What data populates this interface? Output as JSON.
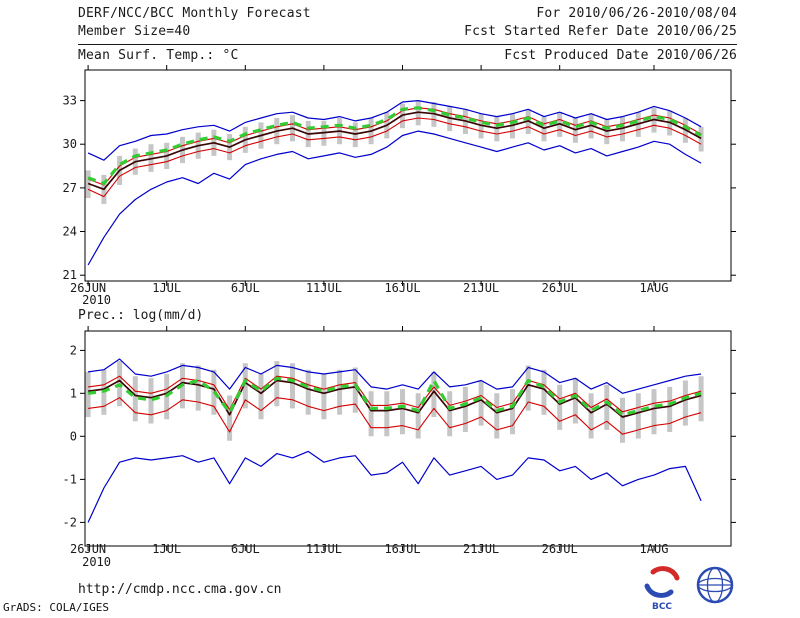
{
  "header": {
    "title": "DERF/NCC/BCC Monthly Forecast",
    "member_size": "Member Size=40",
    "for_range": "For 2010/06/26-2010/08/04",
    "fcst_started": "Fcst Started Refer Date 2010/06/25",
    "fcst_produced": "Fcst Produced Date 2010/06/26"
  },
  "footer": {
    "url": "http://cmdp.ncc.cma.gov.cn",
    "credit": "GrADS: COLA/IGES",
    "logos": {
      "bcc_label": "BCC"
    }
  },
  "colors": {
    "envelope_blue": "#0000cc",
    "quartile_red": "#d40000",
    "mean_dark": "#3a0505",
    "median_green": "#33cc33",
    "spread_gray": "#c6c6c6",
    "axis_black": "#000000",
    "text_dark": "#1a1a1a"
  },
  "chart_data": [
    {
      "type": "line",
      "title": "Mean Surf. Temp.: °C",
      "x_year": "2010",
      "xtick_labels": [
        "26JUN",
        "1JUL",
        "6JUL",
        "11JUL",
        "16JUL",
        "21JUL",
        "26JUL",
        "1AUG"
      ],
      "xtick_days": [
        0,
        5,
        10,
        15,
        20,
        25,
        30,
        36
      ],
      "xlim": [
        -0.2,
        40.9
      ],
      "ylim": [
        20.6,
        35.1
      ],
      "yticks": [
        21,
        24,
        27,
        30,
        33
      ],
      "ylabel": "Mean Surf. Temp. (°C)",
      "legend_position": "none",
      "grid": false,
      "bars": {
        "name": "ensemble-spread",
        "color": "#c6c6c6",
        "top": [
          28.2,
          27.9,
          29.2,
          29.7,
          30.0,
          30.1,
          30.5,
          30.8,
          31.0,
          30.7,
          31.2,
          31.5,
          31.8,
          32.0,
          31.6,
          31.6,
          31.8,
          31.5,
          31.8,
          32.2,
          32.8,
          33.0,
          32.9,
          32.6,
          32.4,
          32.1,
          31.9,
          32.1,
          32.4,
          31.9,
          32.2,
          31.8,
          32.1,
          31.7,
          31.9,
          32.2,
          32.5,
          32.3,
          31.8,
          31.2
        ],
        "bottom": [
          26.3,
          25.9,
          27.2,
          27.9,
          28.1,
          28.3,
          28.7,
          29.0,
          29.2,
          28.9,
          29.4,
          29.7,
          30.0,
          30.2,
          29.8,
          29.9,
          30.0,
          29.8,
          30.0,
          30.4,
          31.1,
          31.3,
          31.2,
          30.9,
          30.7,
          30.4,
          30.2,
          30.4,
          30.7,
          30.2,
          30.5,
          30.1,
          30.4,
          30.0,
          30.2,
          30.5,
          30.8,
          30.6,
          30.1,
          29.5
        ]
      },
      "series": [
        {
          "name": "ensemble-max",
          "color": "#0000cc",
          "style": "solid",
          "width": 1.2,
          "values": [
            29.4,
            28.9,
            29.9,
            30.2,
            30.6,
            30.7,
            31.0,
            31.2,
            31.3,
            30.9,
            31.5,
            31.8,
            32.1,
            32.2,
            31.8,
            31.7,
            31.9,
            31.6,
            31.8,
            32.2,
            32.9,
            33.0,
            32.8,
            32.6,
            32.4,
            32.1,
            31.9,
            32.1,
            32.4,
            31.9,
            32.2,
            31.8,
            32.1,
            31.7,
            31.9,
            32.2,
            32.6,
            32.3,
            31.8,
            31.2
          ]
        },
        {
          "name": "ensemble-min",
          "color": "#0000cc",
          "style": "solid",
          "width": 1.2,
          "values": [
            21.7,
            23.6,
            25.2,
            26.2,
            26.9,
            27.4,
            27.7,
            27.3,
            28.0,
            27.6,
            28.6,
            29.0,
            29.3,
            29.5,
            29.0,
            29.2,
            29.4,
            29.1,
            29.3,
            29.8,
            30.6,
            30.9,
            30.7,
            30.4,
            30.1,
            29.8,
            29.5,
            29.8,
            30.1,
            29.6,
            29.9,
            29.4,
            29.7,
            29.2,
            29.5,
            29.8,
            30.2,
            30.0,
            29.3,
            28.7
          ]
        },
        {
          "name": "upper-quartile",
          "color": "#d40000",
          "style": "solid",
          "width": 1.1,
          "values": [
            27.6,
            27.2,
            28.5,
            29.1,
            29.3,
            29.5,
            29.9,
            30.2,
            30.4,
            30.1,
            30.6,
            30.9,
            31.2,
            31.4,
            31.0,
            31.1,
            31.2,
            31.0,
            31.2,
            31.6,
            32.3,
            32.5,
            32.4,
            32.1,
            31.9,
            31.6,
            31.4,
            31.6,
            31.9,
            31.4,
            31.7,
            31.3,
            31.6,
            31.2,
            31.4,
            31.7,
            32.0,
            31.8,
            31.3,
            30.7
          ]
        },
        {
          "name": "lower-quartile",
          "color": "#d40000",
          "style": "solid",
          "width": 1.1,
          "values": [
            26.9,
            26.4,
            27.8,
            28.4,
            28.6,
            28.8,
            29.2,
            29.5,
            29.7,
            29.4,
            29.9,
            30.2,
            30.5,
            30.7,
            30.3,
            30.4,
            30.5,
            30.3,
            30.5,
            30.9,
            31.6,
            31.8,
            31.7,
            31.4,
            31.2,
            30.9,
            30.7,
            30.9,
            31.2,
            30.7,
            31.0,
            30.6,
            30.9,
            30.5,
            30.7,
            31.0,
            31.3,
            31.1,
            30.6,
            30.0
          ]
        },
        {
          "name": "ensemble-mean",
          "color": "#3a0505",
          "style": "solid",
          "width": 1.7,
          "values": [
            27.3,
            26.9,
            28.2,
            28.8,
            29.0,
            29.2,
            29.6,
            29.9,
            30.1,
            29.8,
            30.3,
            30.6,
            30.9,
            31.1,
            30.7,
            30.8,
            30.9,
            30.7,
            30.9,
            31.3,
            32.0,
            32.2,
            32.1,
            31.8,
            31.6,
            31.3,
            31.1,
            31.3,
            31.6,
            31.1,
            31.4,
            31.0,
            31.3,
            30.9,
            31.1,
            31.4,
            31.7,
            31.5,
            31.0,
            30.4
          ]
        },
        {
          "name": "ensemble-median",
          "color": "#33cc33",
          "style": "dashed",
          "width": 3.2,
          "values": [
            27.7,
            27.3,
            28.6,
            29.2,
            29.4,
            29.6,
            30.0,
            30.3,
            30.5,
            30.2,
            30.7,
            31.0,
            31.3,
            31.5,
            31.1,
            31.2,
            31.3,
            31.1,
            31.3,
            31.7,
            32.4,
            32.5,
            32.3,
            32.0,
            31.8,
            31.5,
            31.3,
            31.5,
            31.8,
            31.3,
            31.6,
            31.2,
            31.5,
            31.1,
            31.3,
            31.6,
            31.9,
            31.7,
            31.2,
            30.6
          ]
        }
      ]
    },
    {
      "type": "line",
      "title": "Prec.: log(mm/d)",
      "x_year": "2010",
      "xtick_labels": [
        "26JUN",
        "1JUL",
        "6JUL",
        "11JUL",
        "16JUL",
        "21JUL",
        "26JUL",
        "1AUG"
      ],
      "xtick_days": [
        0,
        5,
        10,
        15,
        20,
        25,
        30,
        36
      ],
      "xlim": [
        -0.2,
        40.9
      ],
      "ylim": [
        -2.55,
        2.45
      ],
      "yticks": [
        -2,
        -1,
        0,
        1,
        2
      ],
      "ylabel": "Prec. log(mm/d)",
      "legend_position": "none",
      "grid": false,
      "bars": {
        "name": "ensemble-spread",
        "color": "#c6c6c6",
        "top": [
          1.5,
          1.55,
          1.75,
          1.4,
          1.35,
          1.45,
          1.7,
          1.65,
          1.55,
          0.95,
          1.7,
          1.45,
          1.75,
          1.7,
          1.55,
          1.45,
          1.55,
          1.6,
          1.05,
          1.05,
          1.1,
          1.0,
          1.5,
          1.05,
          1.15,
          1.3,
          1.0,
          1.1,
          1.65,
          1.55,
          1.2,
          1.35,
          1.0,
          1.2,
          0.9,
          1.0,
          1.1,
          1.15,
          1.3,
          1.4
        ],
        "bottom": [
          0.45,
          0.5,
          0.7,
          0.35,
          0.3,
          0.4,
          0.65,
          0.6,
          0.5,
          -0.1,
          0.65,
          0.4,
          0.7,
          0.65,
          0.5,
          0.4,
          0.5,
          0.55,
          0.0,
          0.0,
          0.05,
          -0.05,
          0.45,
          0.0,
          0.1,
          0.25,
          -0.05,
          0.05,
          0.6,
          0.5,
          0.15,
          0.3,
          -0.05,
          0.15,
          -0.15,
          -0.05,
          0.05,
          0.1,
          0.25,
          0.35
        ]
      },
      "series": [
        {
          "name": "ensemble-max",
          "color": "#0000cc",
          "style": "solid",
          "width": 1.2,
          "values": [
            1.5,
            1.55,
            1.8,
            1.45,
            1.4,
            1.5,
            1.65,
            1.6,
            1.5,
            1.1,
            1.6,
            1.45,
            1.65,
            1.6,
            1.5,
            1.45,
            1.5,
            1.55,
            1.15,
            1.1,
            1.2,
            1.1,
            1.5,
            1.15,
            1.2,
            1.3,
            1.1,
            1.15,
            1.6,
            1.5,
            1.25,
            1.35,
            1.1,
            1.25,
            1.0,
            1.1,
            1.2,
            1.3,
            1.4,
            1.45
          ]
        },
        {
          "name": "ensemble-min",
          "color": "#0000cc",
          "style": "solid",
          "width": 1.2,
          "values": [
            -2.0,
            -1.2,
            -0.6,
            -0.5,
            -0.55,
            -0.5,
            -0.45,
            -0.6,
            -0.5,
            -1.1,
            -0.5,
            -0.7,
            -0.4,
            -0.5,
            -0.35,
            -0.6,
            -0.5,
            -0.45,
            -0.9,
            -0.85,
            -0.6,
            -1.1,
            -0.5,
            -0.9,
            -0.8,
            -0.7,
            -1.0,
            -0.9,
            -0.5,
            -0.55,
            -0.8,
            -0.7,
            -1.0,
            -0.85,
            -1.15,
            -1.0,
            -0.9,
            -0.75,
            -0.7,
            -1.5
          ]
        },
        {
          "name": "upper-quartile",
          "color": "#d40000",
          "style": "solid",
          "width": 1.1,
          "values": [
            1.15,
            1.2,
            1.4,
            1.05,
            1.0,
            1.1,
            1.35,
            1.3,
            1.2,
            0.62,
            1.35,
            1.1,
            1.4,
            1.35,
            1.2,
            1.1,
            1.2,
            1.25,
            0.72,
            0.72,
            0.77,
            0.67,
            1.15,
            0.72,
            0.82,
            0.95,
            0.67,
            0.77,
            1.3,
            1.2,
            0.87,
            1.0,
            0.67,
            0.87,
            0.57,
            0.67,
            0.77,
            0.82,
            0.95,
            1.05
          ]
        },
        {
          "name": "lower-quartile",
          "color": "#d40000",
          "style": "solid",
          "width": 1.1,
          "values": [
            0.65,
            0.7,
            0.9,
            0.55,
            0.5,
            0.6,
            0.85,
            0.8,
            0.7,
            0.1,
            0.85,
            0.6,
            0.9,
            0.85,
            0.7,
            0.6,
            0.7,
            0.75,
            0.2,
            0.2,
            0.25,
            0.15,
            0.65,
            0.2,
            0.3,
            0.45,
            0.15,
            0.25,
            0.8,
            0.7,
            0.35,
            0.5,
            0.15,
            0.35,
            0.05,
            0.15,
            0.25,
            0.3,
            0.45,
            0.55
          ]
        },
        {
          "name": "ensemble-mean",
          "color": "#3a0505",
          "style": "solid",
          "width": 1.7,
          "values": [
            1.05,
            1.1,
            1.3,
            0.95,
            0.9,
            1.0,
            1.25,
            1.2,
            1.1,
            0.5,
            1.25,
            1.0,
            1.3,
            1.25,
            1.1,
            1.0,
            1.1,
            1.15,
            0.6,
            0.6,
            0.65,
            0.55,
            1.05,
            0.6,
            0.7,
            0.85,
            0.55,
            0.65,
            1.2,
            1.1,
            0.75,
            0.9,
            0.55,
            0.75,
            0.45,
            0.55,
            0.65,
            0.7,
            0.85,
            0.95
          ]
        },
        {
          "name": "ensemble-median",
          "color": "#33cc33",
          "style": "dashed",
          "width": 3.2,
          "values": [
            1.0,
            1.05,
            1.2,
            0.9,
            0.85,
            0.95,
            1.2,
            1.3,
            1.05,
            0.55,
            1.3,
            1.05,
            1.35,
            1.3,
            1.15,
            1.05,
            1.15,
            1.2,
            0.65,
            0.65,
            0.7,
            0.6,
            1.3,
            0.65,
            0.75,
            0.9,
            0.6,
            0.7,
            1.3,
            1.15,
            0.8,
            0.95,
            0.6,
            0.8,
            0.5,
            0.6,
            0.7,
            0.75,
            0.9,
            1.0
          ]
        }
      ]
    }
  ]
}
